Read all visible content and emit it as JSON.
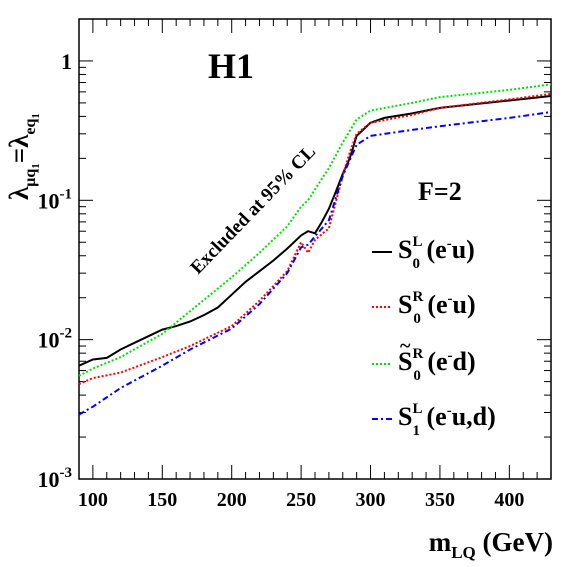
{
  "chart_data": {
    "type": "line",
    "title": "H1",
    "annotation": "Excluded at 95% CL",
    "fermion_label": "F=2",
    "xlabel": "m_LQ (GeV)",
    "ylabel": "λ_μq1 = λ_eq1",
    "xlim": [
      90,
      430
    ],
    "ylim": [
      0.001,
      2
    ],
    "log_y": true,
    "grid": false,
    "legend_position": "right",
    "x_ticks": [
      100,
      150,
      200,
      250,
      300,
      350,
      400
    ],
    "y_ticks": [
      {
        "value": 0.001,
        "base": "10",
        "exp": "-3"
      },
      {
        "value": 0.01,
        "base": "10",
        "exp": "-2"
      },
      {
        "value": 0.1,
        "base": "10",
        "exp": "-1"
      },
      {
        "value": 1,
        "base": "1",
        "exp": ""
      }
    ],
    "series": [
      {
        "name": "S0L (e-u)",
        "color": "#000000",
        "dash": "solid",
        "legend": {
          "sym": "S",
          "tilde": false,
          "sub": "0",
          "sup": "L",
          "proc": "e",
          "proc_sup": "-",
          "proc_rest": "u"
        },
        "x": [
          90,
          100,
          110,
          120,
          130,
          150,
          160,
          170,
          180,
          190,
          200,
          210,
          220,
          230,
          240,
          250,
          255,
          260,
          265,
          270,
          275,
          280,
          285,
          290,
          300,
          310,
          330,
          350,
          400,
          430
        ],
        "y": [
          0.0065,
          0.0072,
          0.0074,
          0.0085,
          0.0095,
          0.0118,
          0.0125,
          0.0135,
          0.015,
          0.017,
          0.021,
          0.026,
          0.031,
          0.037,
          0.045,
          0.056,
          0.06,
          0.058,
          0.07,
          0.087,
          0.115,
          0.155,
          0.2,
          0.29,
          0.36,
          0.39,
          0.42,
          0.46,
          0.52,
          0.56
        ]
      },
      {
        "name": "S0R (e-u)",
        "color": "#ff0000",
        "dash": "dotted",
        "legend": {
          "sym": "S",
          "tilde": false,
          "sub": "0",
          "sup": "R",
          "proc": "e",
          "proc_sup": "-",
          "proc_rest": "u"
        },
        "x": [
          90,
          100,
          120,
          150,
          170,
          200,
          220,
          240,
          250,
          255,
          260,
          270,
          280,
          285,
          290,
          300,
          330,
          350,
          400,
          430
        ],
        "y": [
          0.0048,
          0.0053,
          0.0058,
          0.0075,
          0.009,
          0.0125,
          0.019,
          0.031,
          0.05,
          0.042,
          0.052,
          0.063,
          0.15,
          0.22,
          0.3,
          0.36,
          0.41,
          0.46,
          0.53,
          0.58
        ]
      },
      {
        "name": "S~0R (e-d)",
        "color": "#00e000",
        "dash": "dotted",
        "legend": {
          "sym": "S",
          "tilde": true,
          "sub": "0",
          "sup": "R",
          "proc": "e",
          "proc_sup": "-",
          "proc_rest": "d"
        },
        "x": [
          90,
          100,
          120,
          150,
          170,
          200,
          220,
          240,
          250,
          255,
          260,
          270,
          280,
          290,
          300,
          330,
          350,
          400,
          430
        ],
        "y": [
          0.0055,
          0.0062,
          0.0075,
          0.011,
          0.016,
          0.028,
          0.042,
          0.065,
          0.09,
          0.1,
          0.12,
          0.17,
          0.26,
          0.38,
          0.44,
          0.5,
          0.55,
          0.62,
          0.68
        ]
      },
      {
        "name": "S1L (e-u,d)",
        "color": "#0000ff",
        "dash": "dashdot",
        "legend": {
          "sym": "S",
          "tilde": false,
          "sub": "1",
          "sup": "L",
          "proc": "e",
          "proc_sup": "-",
          "proc_rest": "u,d"
        },
        "x": [
          90,
          100,
          120,
          150,
          170,
          200,
          220,
          240,
          250,
          255,
          260,
          270,
          280,
          290,
          300,
          330,
          350,
          400,
          430
        ],
        "y": [
          0.0029,
          0.0033,
          0.0045,
          0.0065,
          0.0085,
          0.012,
          0.018,
          0.03,
          0.046,
          0.048,
          0.055,
          0.072,
          0.15,
          0.25,
          0.29,
          0.32,
          0.34,
          0.39,
          0.43
        ]
      }
    ]
  }
}
